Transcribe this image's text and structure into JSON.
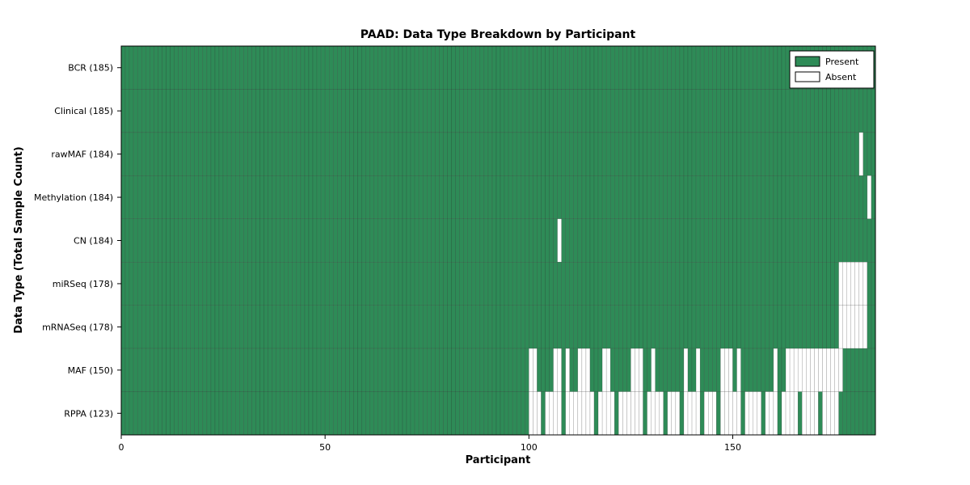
{
  "chart_data": {
    "type": "heatmap",
    "title": "PAAD: Data Type Breakdown by Participant",
    "xlabel": "Participant",
    "ylabel": "Data Type (Total Sample Count)",
    "n_participants": 185,
    "x_range": [
      0,
      185
    ],
    "x_ticks": [
      0,
      50,
      100,
      150
    ],
    "grid": false,
    "legend_position": "upper right",
    "legend": {
      "present": "Present",
      "absent": "Absent"
    },
    "colors": {
      "present": "#2e8b57",
      "absent": "#ffffff",
      "cell_edge": "#2b2b2b",
      "axis": "#000000",
      "background": "#ffffff"
    },
    "rows": [
      {
        "label": "BCR (185)",
        "data_type": "BCR",
        "present_count": 185,
        "absent_participants": []
      },
      {
        "label": "Clinical (185)",
        "data_type": "Clinical",
        "present_count": 185,
        "absent_participants": []
      },
      {
        "label": "rawMAF (184)",
        "data_type": "rawMAF",
        "present_count": 184,
        "absent_participants": [
          181
        ]
      },
      {
        "label": "Methylation (184)",
        "data_type": "Methylation",
        "present_count": 184,
        "absent_participants": [
          183
        ]
      },
      {
        "label": "CN (184)",
        "data_type": "CN",
        "present_count": 184,
        "absent_participants": [
          107
        ]
      },
      {
        "label": "miRSeq (178)",
        "data_type": "miRSeq",
        "present_count": 178,
        "absent_participants": [
          176,
          177,
          178,
          179,
          180,
          181,
          182
        ]
      },
      {
        "label": "mRNASeq (178)",
        "data_type": "mRNASeq",
        "present_count": 178,
        "absent_participants": [
          176,
          177,
          178,
          179,
          180,
          181,
          182
        ]
      },
      {
        "label": "MAF (150)",
        "data_type": "MAF",
        "present_count": 150,
        "absent_participants": [
          100,
          101,
          106,
          107,
          109,
          112,
          113,
          114,
          118,
          119,
          125,
          126,
          127,
          130,
          138,
          141,
          147,
          148,
          149,
          151,
          160,
          163,
          164,
          165,
          166,
          167,
          168,
          169,
          170,
          171,
          172,
          173,
          174,
          175,
          176
        ]
      },
      {
        "label": "RPPA (123)",
        "data_type": "RPPA",
        "present_count": 123,
        "absent_participants": [
          100,
          101,
          102,
          104,
          105,
          106,
          107,
          109,
          110,
          111,
          112,
          113,
          114,
          115,
          117,
          118,
          119,
          120,
          122,
          123,
          124,
          125,
          126,
          127,
          129,
          130,
          131,
          132,
          134,
          135,
          136,
          138,
          139,
          140,
          141,
          143,
          144,
          145,
          147,
          148,
          149,
          150,
          151,
          153,
          154,
          155,
          156,
          158,
          159,
          160,
          162,
          163,
          164,
          165,
          167,
          168,
          169,
          170,
          172,
          173,
          174,
          175
        ]
      }
    ]
  }
}
